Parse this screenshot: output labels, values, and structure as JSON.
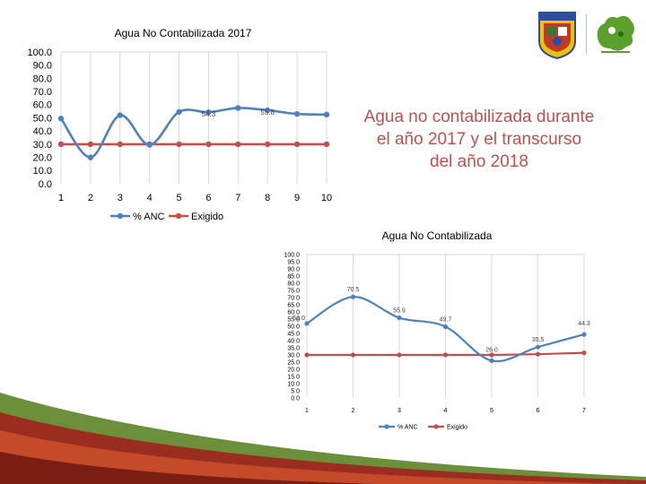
{
  "headline": "Agua no contabilizada durante el año 2017 y el transcurso del año 2018",
  "colors": {
    "anc": "#4f81bd",
    "exigido": "#c0504d",
    "grid": "#d9d9d9",
    "headline": "#c0504d"
  },
  "logos": [
    "university-shield-logo",
    "regional-map-logo"
  ],
  "chart_data": [
    {
      "type": "line",
      "title": "Agua No Contabilizada 2017",
      "x": [
        1,
        2,
        3,
        4,
        5,
        6,
        7,
        8,
        9,
        10
      ],
      "ylim": [
        0,
        100
      ],
      "yticks": [
        "100.0",
        "90.0",
        "80.0",
        "70.0",
        "60.0",
        "50.0",
        "40.0",
        "30.0",
        "20.0",
        "10.0",
        "0.0"
      ],
      "grid": "vertical",
      "legend_position": "bottom",
      "series": [
        {
          "name": "% ANC",
          "values": [
            49.5,
            20.0,
            52.0,
            29.5,
            54.5,
            54.3,
            57.5,
            55.8,
            53.0,
            52.5
          ],
          "point_labels": [
            "",
            "",
            "",
            "",
            "",
            "54.3",
            "",
            "55.8",
            "",
            ""
          ]
        },
        {
          "name": "Exigido",
          "values": [
            30,
            30,
            30,
            30,
            30,
            30,
            30,
            30,
            30,
            30
          ],
          "point_labels": [
            "",
            "",
            "",
            "",
            "",
            "",
            "",
            "",
            "",
            ""
          ]
        }
      ]
    },
    {
      "type": "line",
      "title": "Agua No Contabilizada",
      "x": [
        1,
        2,
        3,
        4,
        5,
        6,
        7
      ],
      "ylim": [
        0,
        100
      ],
      "yticks": [
        "100.0",
        "95.0",
        "90.0",
        "85.0",
        "80.0",
        "75.0",
        "70.0",
        "65.0",
        "60.0",
        "55.0",
        "50.0",
        "45.0",
        "40.0",
        "35.0",
        "30.0",
        "25.0",
        "20.0",
        "15.0",
        "10.0",
        "5.0",
        "0.0"
      ],
      "grid": "vertical",
      "legend_position": "bottom",
      "series": [
        {
          "name": "% ANC",
          "values": [
            52.0,
            70.5,
            55.9,
            49.7,
            26.0,
            35.5,
            44.3
          ],
          "point_labels": [
            "52.0",
            "70.5",
            "55.9",
            "49.7",
            "26.0",
            "35.5",
            "44.3"
          ]
        },
        {
          "name": "Exigido",
          "values": [
            30,
            30,
            30,
            30,
            30,
            30.5,
            31.5
          ],
          "point_labels": [
            "",
            "",
            "",
            "",
            "",
            "",
            ""
          ]
        }
      ]
    }
  ]
}
